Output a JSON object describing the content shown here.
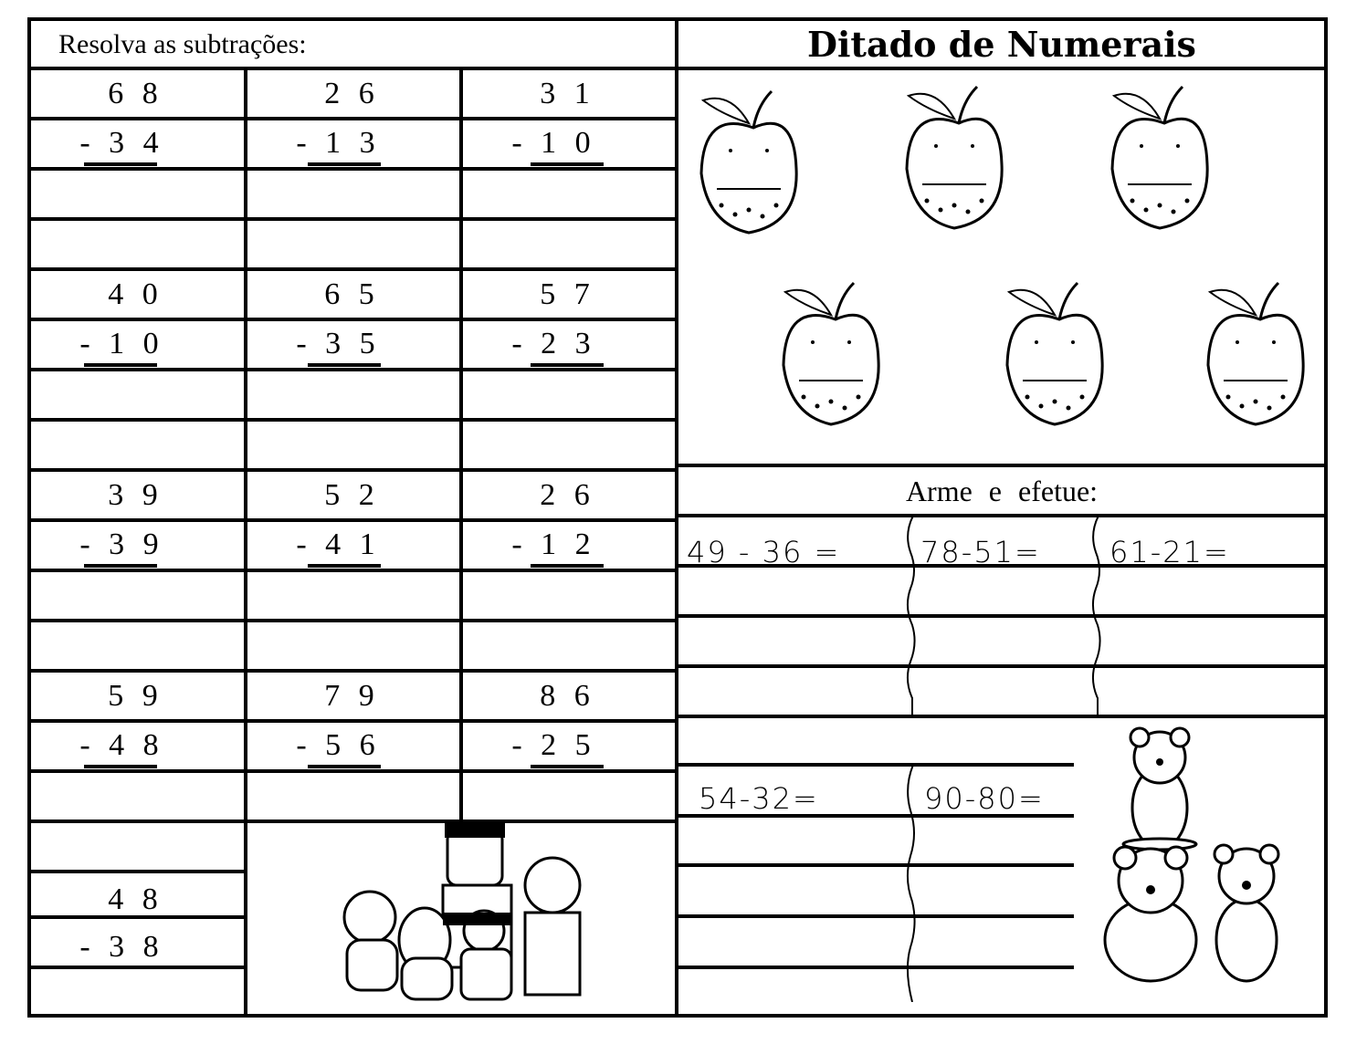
{
  "left": {
    "instruction": "Resolva as subtrações:",
    "problems": [
      {
        "top": "6 8",
        "bottom": "- 3 4"
      },
      {
        "top": "2 6",
        "bottom": "- 1 3"
      },
      {
        "top": "3 1",
        "bottom": "- 1 0"
      },
      {
        "top": "4 0",
        "bottom": "- 1 0"
      },
      {
        "top": "6 5",
        "bottom": "- 3 5"
      },
      {
        "top": "5 7",
        "bottom": "- 2 3"
      },
      {
        "top": "3 9",
        "bottom": "- 3 9"
      },
      {
        "top": "5 2",
        "bottom": "- 4 1"
      },
      {
        "top": "2 6",
        "bottom": "- 1 2"
      },
      {
        "top": "5 9",
        "bottom": "- 4 8"
      },
      {
        "top": "7 9",
        "bottom": "- 5 6"
      },
      {
        "top": "8 6",
        "bottom": "- 2 5"
      },
      {
        "top": "4 8",
        "bottom": "- 3 8"
      }
    ]
  },
  "right": {
    "title": "Ditado de Numerais",
    "apple_count": 6,
    "section_title": "Arme e efetue:",
    "exercises_row1": [
      "49 - 36 =",
      "78-51=",
      "61-21="
    ],
    "exercises_row2": [
      "54-32=",
      "90-80="
    ]
  },
  "icons": {
    "apple": "apple-illustration",
    "bears": "bear-illustration",
    "characters": "cartoon-characters-illustration"
  }
}
